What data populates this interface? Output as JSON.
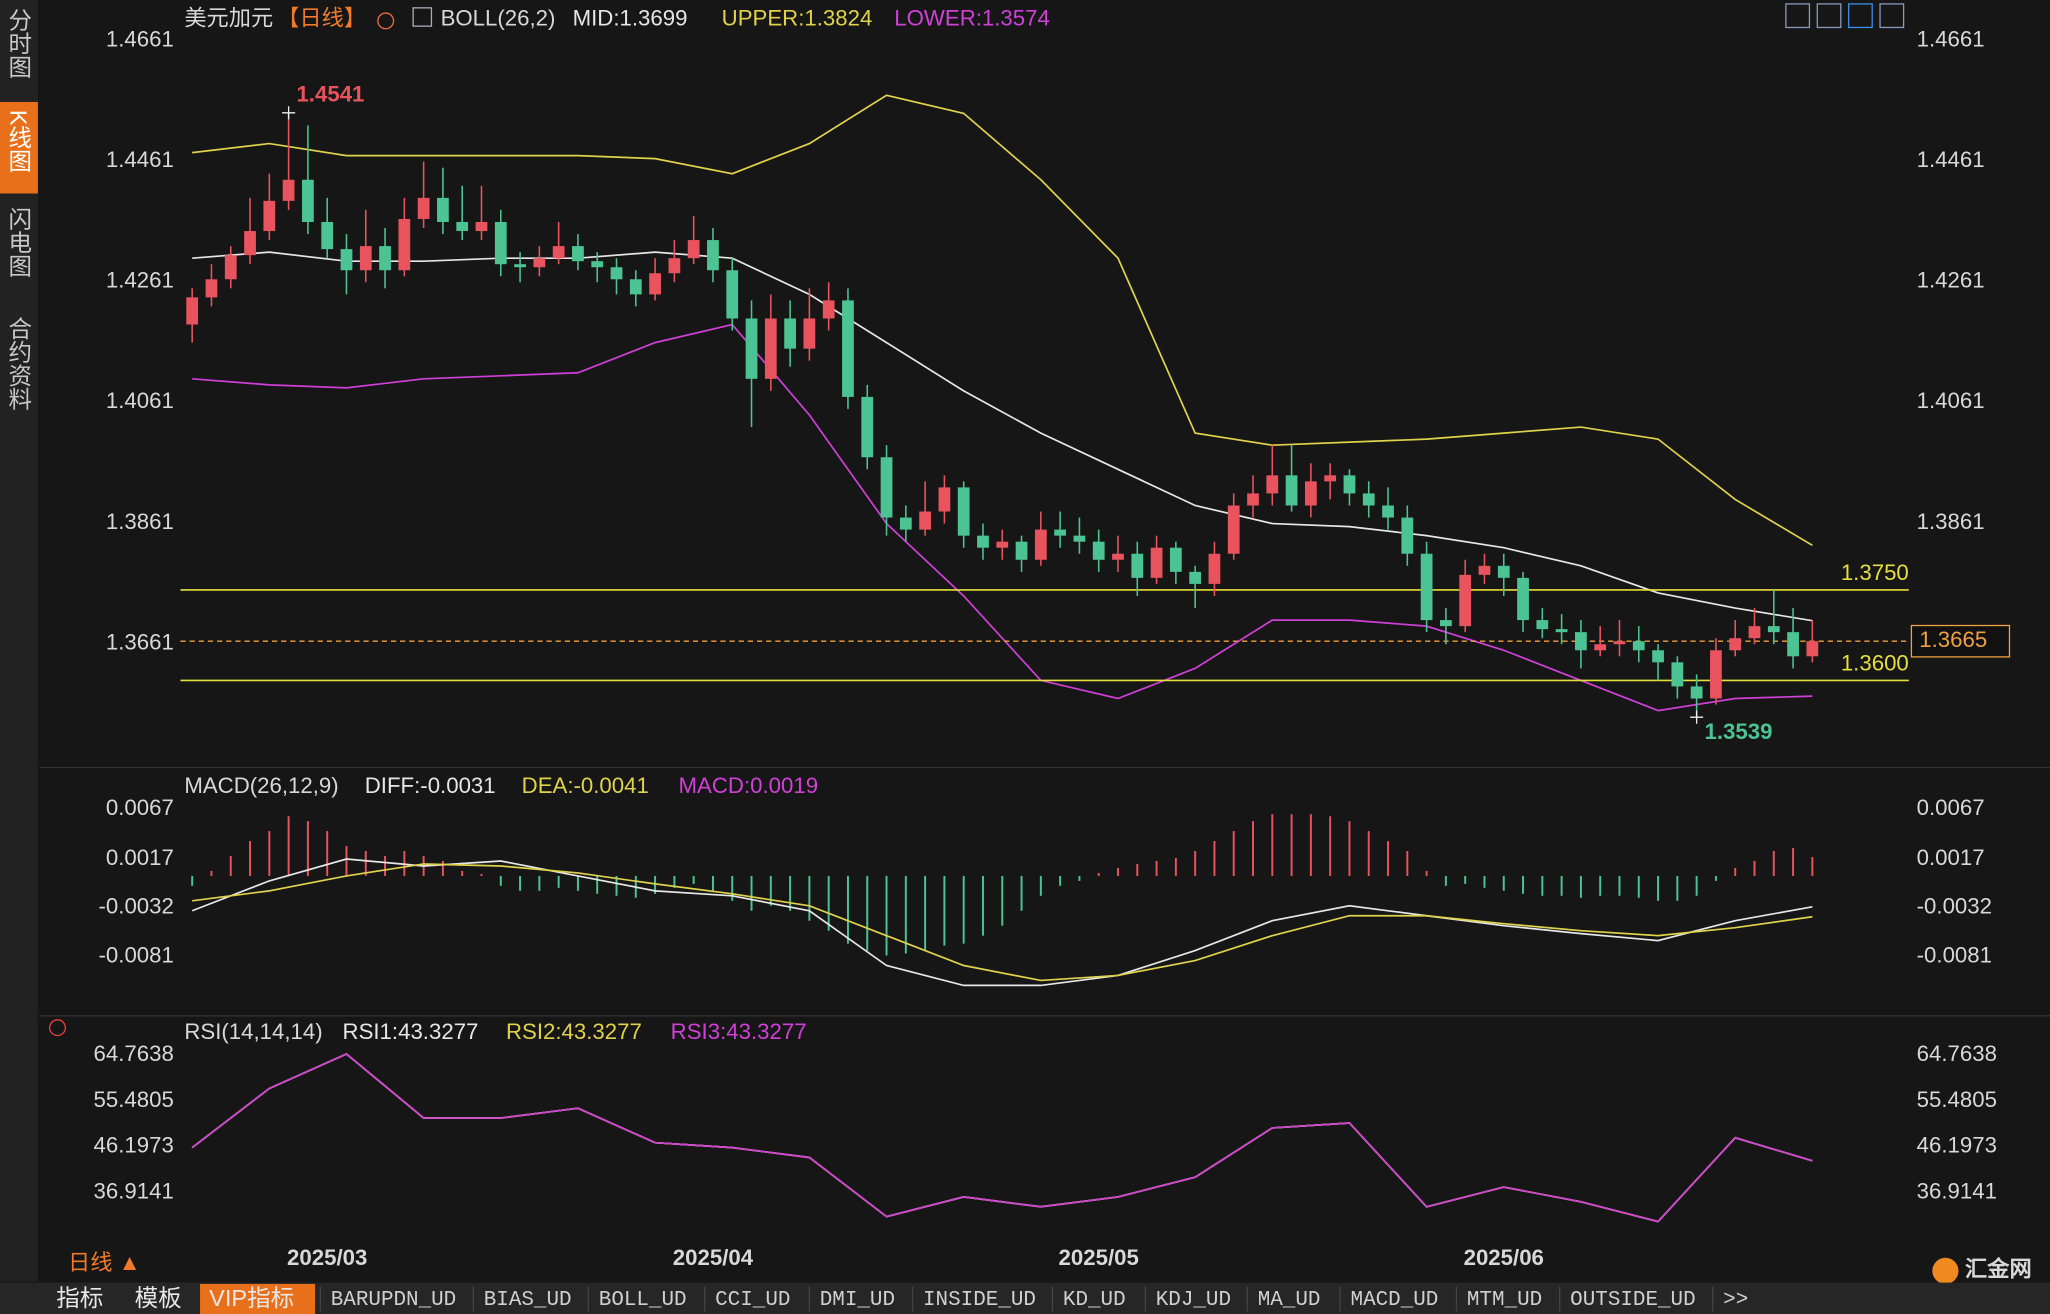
{
  "sidebar": {
    "tabs": [
      "分时图",
      "K线图",
      "闪电图",
      "合约资料"
    ],
    "active": 1
  },
  "period_button": "日线 ▲",
  "toolbar": [
    "指标",
    "模板",
    "VIP指标",
    "BARUPDN_UD",
    "BIAS_UD",
    "BOLL_UD",
    "CCI_UD",
    "DMI_UD",
    "INSIDE_UD",
    "KD_UD",
    "KDJ_UD",
    "MA_UD",
    "MACD_UD",
    "MTM_UD",
    "OUTSIDE_UD",
    ">>"
  ],
  "toolbar_active": 2,
  "logo": "汇金网",
  "chart_data": [
    {
      "type": "candlestick",
      "title": "美元加元",
      "period": "【日线】",
      "indicator": "BOLL(26,2)",
      "xlim": [
        -7.93,
        89
      ],
      "xticks": [
        {
          "value": 7,
          "label": "2025/03"
        },
        {
          "value": 27,
          "label": "2025/04"
        },
        {
          "value": 47,
          "label": "2025/05"
        },
        {
          "value": 68,
          "label": "2025/06"
        }
      ],
      "ylim": [
        1.346,
        1.4728
      ],
      "yticks": [
        1.4661,
        1.4461,
        1.4261,
        1.4061,
        1.3861,
        1.3661
      ],
      "up_color": "#e8535d",
      "down_color": "#4cc392",
      "ohlc": [
        [
          1.419,
          1.425,
          1.416,
          1.4235
        ],
        [
          1.4235,
          1.429,
          1.422,
          1.4265
        ],
        [
          1.4265,
          1.432,
          1.425,
          1.4305
        ],
        [
          1.4305,
          1.44,
          1.429,
          1.4345
        ],
        [
          1.4345,
          1.444,
          1.433,
          1.4395
        ],
        [
          1.4395,
          1.4541,
          1.438,
          1.443
        ],
        [
          1.443,
          1.452,
          1.434,
          1.436
        ],
        [
          1.436,
          1.44,
          1.43,
          1.4315
        ],
        [
          1.4315,
          1.434,
          1.424,
          1.428
        ],
        [
          1.428,
          1.438,
          1.426,
          1.432
        ],
        [
          1.432,
          1.435,
          1.425,
          1.428
        ],
        [
          1.428,
          1.44,
          1.427,
          1.4365
        ],
        [
          1.4365,
          1.446,
          1.435,
          1.44
        ],
        [
          1.44,
          1.445,
          1.434,
          1.436
        ],
        [
          1.436,
          1.442,
          1.433,
          1.4345
        ],
        [
          1.4345,
          1.442,
          1.433,
          1.436
        ],
        [
          1.436,
          1.438,
          1.427,
          1.429
        ],
        [
          1.429,
          1.431,
          1.426,
          1.4285
        ],
        [
          1.4285,
          1.432,
          1.427,
          1.43
        ],
        [
          1.43,
          1.436,
          1.429,
          1.432
        ],
        [
          1.432,
          1.434,
          1.428,
          1.4295
        ],
        [
          1.4295,
          1.431,
          1.426,
          1.4285
        ],
        [
          1.4285,
          1.43,
          1.424,
          1.4265
        ],
        [
          1.4265,
          1.428,
          1.422,
          1.424
        ],
        [
          1.424,
          1.43,
          1.423,
          1.4275
        ],
        [
          1.4275,
          1.433,
          1.426,
          1.43
        ],
        [
          1.43,
          1.437,
          1.429,
          1.433
        ],
        [
          1.433,
          1.435,
          1.426,
          1.428
        ],
        [
          1.428,
          1.43,
          1.418,
          1.42
        ],
        [
          1.42,
          1.423,
          1.402,
          1.41
        ],
        [
          1.41,
          1.424,
          1.408,
          1.42
        ],
        [
          1.42,
          1.423,
          1.412,
          1.415
        ],
        [
          1.415,
          1.425,
          1.413,
          1.42
        ],
        [
          1.42,
          1.426,
          1.418,
          1.423
        ],
        [
          1.423,
          1.425,
          1.405,
          1.407
        ],
        [
          1.407,
          1.409,
          1.395,
          1.397
        ],
        [
          1.397,
          1.399,
          1.384,
          1.387
        ],
        [
          1.387,
          1.389,
          1.383,
          1.385
        ],
        [
          1.385,
          1.393,
          1.384,
          1.388
        ],
        [
          1.388,
          1.394,
          1.386,
          1.392
        ],
        [
          1.392,
          1.393,
          1.382,
          1.384
        ],
        [
          1.384,
          1.386,
          1.38,
          1.382
        ],
        [
          1.382,
          1.385,
          1.38,
          1.383
        ],
        [
          1.383,
          1.384,
          1.378,
          1.38
        ],
        [
          1.38,
          1.388,
          1.379,
          1.385
        ],
        [
          1.385,
          1.388,
          1.382,
          1.384
        ],
        [
          1.384,
          1.387,
          1.381,
          1.383
        ],
        [
          1.383,
          1.385,
          1.378,
          1.38
        ],
        [
          1.38,
          1.384,
          1.378,
          1.381
        ],
        [
          1.381,
          1.383,
          1.374,
          1.377
        ],
        [
          1.377,
          1.384,
          1.376,
          1.382
        ],
        [
          1.382,
          1.383,
          1.376,
          1.378
        ],
        [
          1.378,
          1.379,
          1.372,
          1.376
        ],
        [
          1.376,
          1.383,
          1.374,
          1.381
        ],
        [
          1.381,
          1.391,
          1.38,
          1.389
        ],
        [
          1.389,
          1.394,
          1.387,
          1.391
        ],
        [
          1.391,
          1.399,
          1.389,
          1.394
        ],
        [
          1.394,
          1.399,
          1.388,
          1.389
        ],
        [
          1.389,
          1.396,
          1.387,
          1.393
        ],
        [
          1.393,
          1.396,
          1.39,
          1.394
        ],
        [
          1.394,
          1.395,
          1.389,
          1.391
        ],
        [
          1.391,
          1.393,
          1.387,
          1.389
        ],
        [
          1.389,
          1.392,
          1.385,
          1.387
        ],
        [
          1.387,
          1.389,
          1.379,
          1.381
        ],
        [
          1.381,
          1.383,
          1.368,
          1.37
        ],
        [
          1.37,
          1.372,
          1.366,
          1.369
        ],
        [
          1.369,
          1.38,
          1.368,
          1.3775
        ],
        [
          1.3775,
          1.381,
          1.376,
          1.379
        ],
        [
          1.379,
          1.381,
          1.374,
          1.377
        ],
        [
          1.377,
          1.378,
          1.368,
          1.37
        ],
        [
          1.37,
          1.372,
          1.367,
          1.3685
        ],
        [
          1.3685,
          1.371,
          1.366,
          1.368
        ],
        [
          1.368,
          1.37,
          1.362,
          1.365
        ],
        [
          1.365,
          1.369,
          1.364,
          1.366
        ],
        [
          1.366,
          1.37,
          1.364,
          1.3665
        ],
        [
          1.3665,
          1.369,
          1.363,
          1.365
        ],
        [
          1.365,
          1.366,
          1.36,
          1.363
        ],
        [
          1.363,
          1.364,
          1.357,
          1.359
        ],
        [
          1.359,
          1.361,
          1.3539,
          1.357
        ],
        [
          1.357,
          1.367,
          1.356,
          1.365
        ],
        [
          1.365,
          1.37,
          1.364,
          1.367
        ],
        [
          1.367,
          1.372,
          1.366,
          1.369
        ],
        [
          1.369,
          1.375,
          1.366,
          1.368
        ],
        [
          1.368,
          1.372,
          1.362,
          1.364
        ],
        [
          1.364,
          1.37,
          1.363,
          1.3665
        ]
      ],
      "x": [
        0,
        4,
        8,
        12,
        16,
        20,
        24,
        28,
        32,
        36,
        40,
        44,
        48,
        52,
        56,
        60,
        64,
        68,
        72,
        76,
        80,
        84
      ],
      "series": [
        {
          "name": "MID:1.3699",
          "color": "#e6e6e6",
          "values": [
            1.43,
            1.431,
            1.4295,
            1.4295,
            1.43,
            1.43,
            1.431,
            1.43,
            1.424,
            1.416,
            1.408,
            1.401,
            1.395,
            1.389,
            1.386,
            1.3855,
            1.384,
            1.382,
            1.379,
            1.3745,
            1.372,
            1.3699
          ]
        },
        {
          "name": "UPPER:1.3824",
          "color": "#e0d24a",
          "values": [
            1.4475,
            1.449,
            1.447,
            1.447,
            1.447,
            1.447,
            1.4465,
            1.444,
            1.449,
            1.457,
            1.454,
            1.443,
            1.43,
            1.401,
            1.399,
            1.3995,
            1.4,
            1.401,
            1.402,
            1.4,
            1.39,
            1.3824
          ]
        },
        {
          "name": "LOWER:1.3574",
          "color": "#d040d8",
          "values": [
            1.41,
            1.409,
            1.4085,
            1.41,
            1.4105,
            1.411,
            1.416,
            1.419,
            1.404,
            1.386,
            1.374,
            1.36,
            1.357,
            1.362,
            1.37,
            1.37,
            1.369,
            1.365,
            1.36,
            1.355,
            1.357,
            1.3574
          ]
        }
      ],
      "high": {
        "x": 5,
        "value": 1.4541,
        "color": "#e8535d"
      },
      "low": {
        "x": 78,
        "value": 1.3539,
        "color": "#4cc392"
      },
      "hline_color": "#e6df3c",
      "hlines": [
        {
          "value": 1.375,
          "label": "1.3750"
        },
        {
          "value": 1.36,
          "label": "1.3600"
        }
      ],
      "last": {
        "value": 1.3665,
        "label": "1.3665",
        "color": "#f0a040"
      }
    },
    {
      "type": "macd",
      "title": "MACD(26,12,9)",
      "ylim": [
        -0.0138,
        0.0105
      ],
      "yticks": [
        0.0067,
        0.0017,
        -0.0032,
        -0.0081
      ],
      "x": [
        0,
        4,
        8,
        12,
        16,
        20,
        24,
        28,
        32,
        36,
        40,
        44,
        48,
        52,
        56,
        60,
        64,
        68,
        72,
        76,
        80,
        84
      ],
      "series": [
        {
          "name": "DIFF:-0.0031",
          "color": "#e6e6e6",
          "values": [
            -0.0035,
            -0.0005,
            0.0017,
            0.001,
            0.0015,
            0.0,
            -0.0015,
            -0.002,
            -0.0035,
            -0.009,
            -0.011,
            -0.011,
            -0.01,
            -0.0075,
            -0.0045,
            -0.003,
            -0.004,
            -0.005,
            -0.0058,
            -0.0065,
            -0.0045,
            -0.0031
          ]
        },
        {
          "name": "DEA:-0.0041",
          "color": "#e0d24a",
          "values": [
            -0.0025,
            -0.0015,
            0.0,
            0.0012,
            0.001,
            0.0003,
            -0.0008,
            -0.0018,
            -0.003,
            -0.006,
            -0.009,
            -0.0105,
            -0.01,
            -0.0085,
            -0.006,
            -0.004,
            -0.004,
            -0.0048,
            -0.0055,
            -0.006,
            -0.0052,
            -0.0041
          ]
        }
      ],
      "histogram": {
        "name": "MACD:0.0019",
        "color": "#d040d8",
        "up_color": "#e8535d",
        "down_color": "#4cc392",
        "values": [
          -0.001,
          0.0005,
          0.002,
          0.0035,
          0.0045,
          0.006,
          0.0055,
          0.0045,
          0.003,
          0.0025,
          0.002,
          0.0025,
          0.002,
          0.0015,
          0.0005,
          0.0002,
          -0.001,
          -0.0015,
          -0.0015,
          -0.0012,
          -0.0015,
          -0.0018,
          -0.002,
          -0.0022,
          -0.0018,
          -0.0012,
          -0.0008,
          -0.0015,
          -0.0025,
          -0.0035,
          -0.003,
          -0.0035,
          -0.0045,
          -0.0055,
          -0.0068,
          -0.0075,
          -0.008,
          -0.0078,
          -0.0075,
          -0.007,
          -0.0068,
          -0.006,
          -0.005,
          -0.0035,
          -0.002,
          -0.001,
          -0.0005,
          0.0003,
          0.0008,
          0.0012,
          0.0015,
          0.0018,
          0.0025,
          0.0035,
          0.0045,
          0.0055,
          0.0062,
          0.0062,
          0.0062,
          0.006,
          0.0055,
          0.0045,
          0.0035,
          0.0025,
          0.0005,
          -0.001,
          -0.0008,
          -0.0012,
          -0.0015,
          -0.0018,
          -0.002,
          -0.002,
          -0.0022,
          -0.002,
          -0.002,
          -0.0022,
          -0.0025,
          -0.0025,
          -0.002,
          -0.0005,
          0.0008,
          0.0015,
          0.0025,
          0.0028,
          0.0019
        ]
      }
    },
    {
      "type": "line",
      "title": "RSI(14,14,14)",
      "ylim": [
        25.51,
        71.93
      ],
      "yticks": [
        64.7638,
        55.4805,
        46.1973,
        36.9141
      ],
      "x": [
        0,
        4,
        8,
        12,
        16,
        20,
        24,
        28,
        32,
        36,
        40,
        44,
        48,
        52,
        56,
        60,
        64,
        68,
        72,
        76,
        80,
        84
      ],
      "series": [
        {
          "name": "RSI1:43.3277",
          "color": "#e6e6e6",
          "values": [
            46,
            58,
            65,
            52,
            52,
            54,
            47,
            46,
            44,
            32,
            36,
            34,
            36,
            40,
            50,
            51,
            34,
            38,
            35,
            31,
            48,
            43.3277
          ]
        },
        {
          "name": "RSI2:43.3277",
          "color": "#e0d24a",
          "values": [
            46,
            58,
            65,
            52,
            52,
            54,
            47,
            46,
            44,
            32,
            36,
            34,
            36,
            40,
            50,
            51,
            34,
            38,
            35,
            31,
            48,
            43.3277
          ]
        },
        {
          "name": "RSI3:43.3277",
          "color": "#d040d8",
          "values": [
            46,
            58,
            65,
            52,
            52,
            54,
            47,
            46,
            44,
            32,
            36,
            34,
            36,
            40,
            50,
            51,
            34,
            38,
            35,
            31,
            48,
            43.3277
          ]
        }
      ]
    }
  ]
}
